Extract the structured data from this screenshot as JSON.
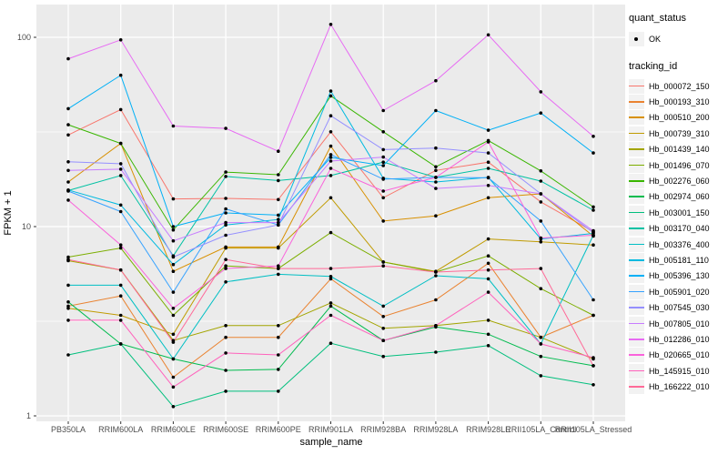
{
  "chart_data": {
    "type": "line",
    "xlabel": "sample_name",
    "ylabel": "FPKM + 1",
    "y_scale": "log10",
    "y_ticks": [
      1,
      10,
      100
    ],
    "y_minor_ticks": [
      3.1623,
      31.623
    ],
    "ylim": [
      0.94,
      150
    ],
    "grid": "white major+minor gridlines on gray panel",
    "legend_position": "right",
    "point_marker": "black dot (quant_status OK)",
    "categories": [
      "PB350LA",
      "RRIM600LA",
      "RRIM600LE",
      "RRIM600SE",
      "RRIM600PE",
      "RRIM901LA",
      "RRIM928BA",
      "RRIM928LA",
      "RRIM928LE",
      "RRII105LA_Control",
      "RRII105LA_Stressed"
    ],
    "series": [
      {
        "name": "Hb_000072_150",
        "color": "#F8766D",
        "values": [
          30.5,
          41.5,
          14.0,
          14.1,
          13.9,
          31.7,
          14.2,
          19.8,
          21.9,
          13.5,
          9.4
        ]
      },
      {
        "name": "Hb_000193_310",
        "color": "#EA8331",
        "values": [
          3.8,
          4.3,
          1.6,
          2.6,
          2.6,
          5.3,
          3.35,
          4.1,
          6.4,
          2.6,
          3.4
        ]
      },
      {
        "name": "Hb_000510_200",
        "color": "#D89000",
        "values": [
          17.2,
          27.5,
          5.8,
          7.8,
          7.8,
          26.6,
          10.7,
          11.4,
          14.2,
          14.9,
          8.9
        ]
      },
      {
        "name": "Hb_000739_310",
        "color": "#C09B00",
        "values": [
          3.7,
          3.4,
          2.7,
          7.7,
          7.7,
          14.2,
          6.5,
          5.8,
          8.6,
          8.3,
          8.0
        ]
      },
      {
        "name": "Hb_001439_140",
        "color": "#A3A500",
        "values": [
          6.6,
          5.9,
          2.5,
          3.0,
          3.0,
          3.95,
          2.9,
          3.0,
          3.2,
          2.6,
          2.0
        ]
      },
      {
        "name": "Hb_001496_070",
        "color": "#7CAE00",
        "values": [
          6.9,
          7.7,
          3.4,
          6.2,
          6.0,
          9.3,
          6.5,
          5.75,
          7.0,
          4.7,
          3.4
        ]
      },
      {
        "name": "Hb_002276_060",
        "color": "#39B600",
        "values": [
          34.5,
          27.5,
          9.6,
          19.4,
          18.8,
          49.0,
          31.7,
          20.7,
          28.5,
          19.7,
          12.7
        ]
      },
      {
        "name": "Hb_002974_060",
        "color": "#00BB4E",
        "values": [
          4.0,
          2.4,
          2.0,
          1.74,
          1.76,
          3.8,
          2.5,
          2.95,
          2.7,
          2.06,
          1.84
        ]
      },
      {
        "name": "Hb_003001_150",
        "color": "#00BF7D",
        "values": [
          2.1,
          2.4,
          1.12,
          1.35,
          1.35,
          2.42,
          2.06,
          2.17,
          2.35,
          1.63,
          1.46
        ]
      },
      {
        "name": "Hb_003170_040",
        "color": "#00C1A3",
        "values": [
          15.5,
          18.6,
          7.0,
          18.4,
          17.5,
          18.6,
          21.9,
          18.2,
          20.3,
          17.4,
          12.2
        ]
      },
      {
        "name": "Hb_003376_400",
        "color": "#00BFC4",
        "values": [
          4.9,
          4.9,
          2.0,
          5.1,
          5.6,
          5.45,
          3.8,
          5.5,
          5.3,
          2.4,
          9.0
        ]
      },
      {
        "name": "Hb_005181_110",
        "color": "#00BAE0",
        "values": [
          15.6,
          13.0,
          6.3,
          10.2,
          10.9,
          52.0,
          18.0,
          17.2,
          18.2,
          8.6,
          9.2
        ]
      },
      {
        "name": "Hb_005396_130",
        "color": "#00B0F6",
        "values": [
          42.0,
          63.0,
          10.0,
          11.8,
          11.5,
          23.2,
          21.0,
          41.0,
          32.3,
          39.8,
          24.5
        ]
      },
      {
        "name": "Hb_005901_020",
        "color": "#35A2FF",
        "values": [
          15.4,
          12.0,
          4.5,
          12.4,
          10.2,
          24.0,
          17.8,
          18.2,
          18.1,
          10.7,
          4.1
        ]
      },
      {
        "name": "Hb_007545_030",
        "color": "#9590FF",
        "values": [
          22.0,
          21.5,
          6.9,
          9.0,
          10.2,
          38.5,
          25.5,
          26.0,
          24.5,
          14.9,
          9.3
        ]
      },
      {
        "name": "Hb_007805_010",
        "color": "#C77CFF",
        "values": [
          19.8,
          20.1,
          8.4,
          10.5,
          10.5,
          22.2,
          23.3,
          15.9,
          16.5,
          14.9,
          9.5
        ]
      },
      {
        "name": "Hb_012286_010",
        "color": "#E76BF3",
        "values": [
          77.0,
          97.0,
          34.0,
          33.0,
          25.0,
          117.0,
          41.0,
          59.0,
          103.0,
          51.5,
          30.0
        ]
      },
      {
        "name": "Hb_020665_010",
        "color": "#FA62DB",
        "values": [
          13.8,
          8.0,
          3.7,
          6.0,
          6.2,
          20.3,
          15.4,
          18.2,
          28.0,
          8.7,
          9.0
        ]
      },
      {
        "name": "Hb_145915_010",
        "color": "#FF62BC",
        "values": [
          3.2,
          3.2,
          1.42,
          2.15,
          2.1,
          3.4,
          2.5,
          3.0,
          4.5,
          2.4,
          2.03
        ]
      },
      {
        "name": "Hb_166222_010",
        "color": "#FF6A98",
        "values": [
          6.7,
          5.9,
          2.45,
          6.7,
          6.0,
          6.0,
          6.2,
          5.75,
          5.9,
          6.0,
          1.84
        ]
      }
    ]
  },
  "legends": {
    "quant_status": {
      "title": "quant_status",
      "items": [
        {
          "label": "OK",
          "marker": "black-point"
        }
      ]
    },
    "tracking_id": {
      "title": "tracking_id"
    }
  },
  "colors": {
    "panel_bg": "#EBEBEB",
    "grid": "#FFFFFF",
    "point": "#000000",
    "axis_text": "#4D4D4D",
    "tick_mark": "#333333",
    "legend_key_bg": "#F2F2F2",
    "background": "#FFFFFF"
  }
}
